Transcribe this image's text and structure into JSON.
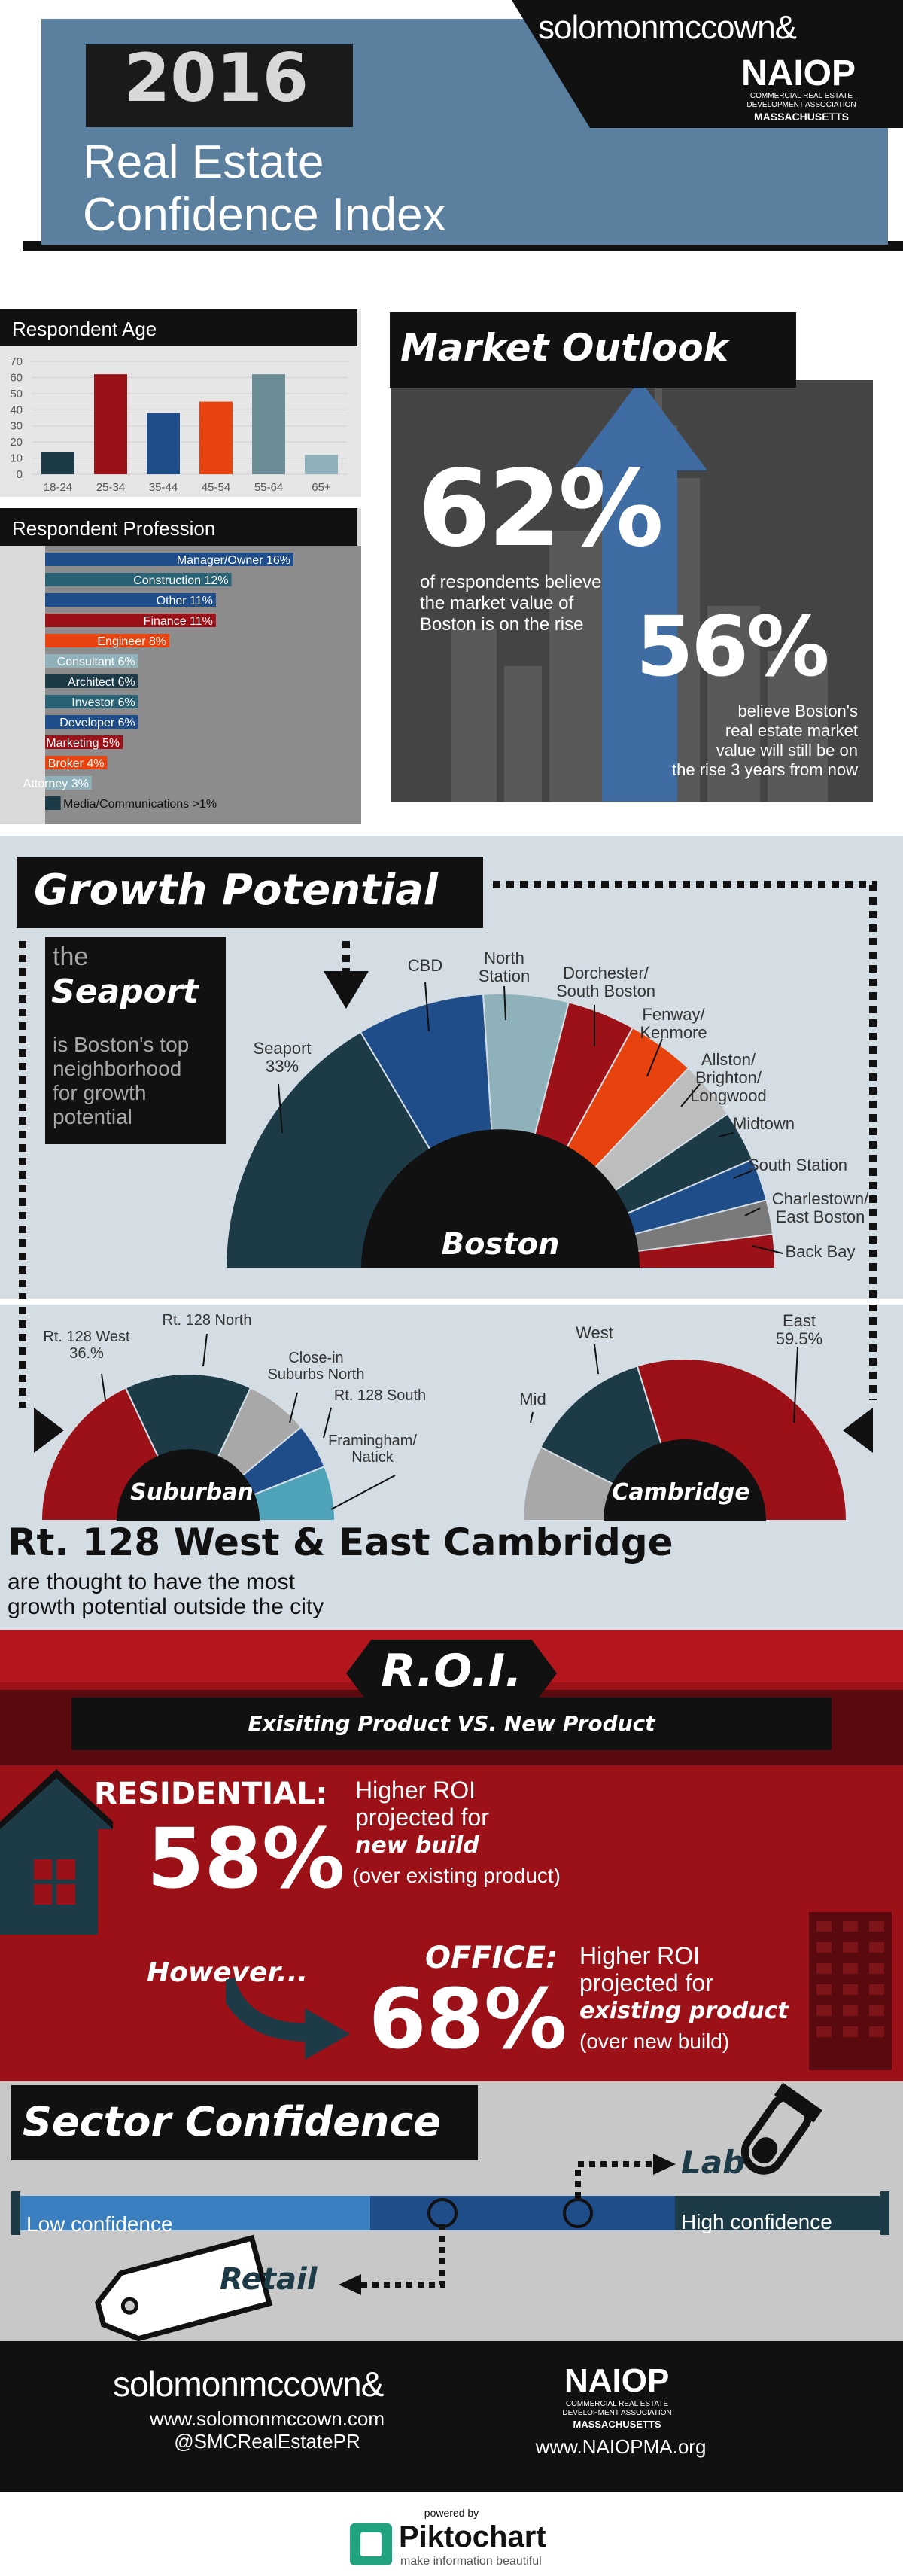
{
  "header": {
    "year": "2016",
    "title_line1": "Real Estate",
    "title_line2": "Confidence Index",
    "brand": "solomonmccown&",
    "naiop": "NAIOP",
    "naiop_sub1": "COMMERCIAL REAL ESTATE",
    "naiop_sub2": "DEVELOPMENT ASSOCIATION",
    "naiop_sub3": "MASSACHUSETTS"
  },
  "colors": {
    "dark_red": "#9b1117",
    "red": "#c51f24",
    "orange": "#e8430f",
    "blue": "#1f4d8a",
    "teal": "#1c3b47",
    "light_teal": "#8fb1ba",
    "gray": "#a8a8a8",
    "steel": "#4f7f9c",
    "black": "#111111"
  },
  "chart_data": [
    {
      "type": "bar",
      "title": "Respondent Age",
      "categories": [
        "18-24",
        "25-34",
        "35-44",
        "45-54",
        "55-64",
        "65+"
      ],
      "values": [
        14,
        62,
        38,
        45,
        62,
        12
      ],
      "colors": [
        "#1c3b47",
        "#9b1117",
        "#1f4d8a",
        "#e8430f",
        "#6d8d96",
        "#8fb1ba"
      ],
      "yticks": [
        "70",
        "60",
        "50",
        "40",
        "30",
        "20",
        "10",
        "0"
      ],
      "ylim": [
        0,
        70
      ]
    },
    {
      "type": "bar",
      "orientation": "horizontal",
      "title": "Respondent Profession",
      "labels": [
        "Manager/Owner 16%",
        "Construction 12%",
        "Other 11%",
        "Finance 11%",
        "Engineer 8%",
        "Consultant 6%",
        "Architect 6%",
        "Investor 6%",
        "Developer 6%",
        "Marketing 5%",
        "Broker 4%",
        "Attorney 3%",
        "Media/Communications >1%"
      ],
      "values": [
        16,
        12,
        11,
        11,
        8,
        6,
        6,
        6,
        6,
        5,
        4,
        3,
        1
      ],
      "colors": [
        "#1f4d8a",
        "#2a6275",
        "#1f4d8a",
        "#9b1117",
        "#e8430f",
        "#8fb1ba",
        "#1c3b47",
        "#2a6275",
        "#1f4d8a",
        "#9b1117",
        "#e8430f",
        "#8fb1ba",
        "#1c3b47"
      ]
    },
    {
      "type": "pie",
      "title": "Boston",
      "labels": [
        "Seaport 33%",
        "CBD",
        "North Station",
        "Dorchester/ South Boston",
        "Fenway/ Kenmore",
        "Allston/ Brighton/ Longwood",
        "Midtown",
        "South Station",
        "Charlestown/ East Boston",
        "Back Bay"
      ],
      "values": [
        33,
        15,
        10,
        8,
        8,
        7,
        6,
        5,
        4,
        4
      ],
      "colors": [
        "#1c3b47",
        "#1f4d8a",
        "#8fb1ba",
        "#9b1117",
        "#e8430f",
        "#bdbdbd",
        "#1c3b47",
        "#1f4d8a",
        "#7a7a7a",
        "#9b1117"
      ]
    },
    {
      "type": "pie",
      "title": "Suburban",
      "labels": [
        "Rt. 128 West 36.%",
        "Rt. 128 North",
        "Close-in Suburbs North",
        "Rt. 128 South",
        "Framingham/ Natick"
      ],
      "values": [
        36,
        28,
        14,
        10,
        12
      ],
      "colors": [
        "#9b1117",
        "#1c3b47",
        "#a8a8a8",
        "#1f4d8a",
        "#4fa3b8"
      ]
    },
    {
      "type": "pie",
      "title": "Cambridge",
      "labels": [
        "Mid",
        "West",
        "East 59.5%"
      ],
      "values": [
        15,
        25.5,
        59.5
      ],
      "colors": [
        "#a8a8a8",
        "#1c3b47",
        "#9b1117"
      ]
    }
  ],
  "market": {
    "heading": "Market Outlook",
    "stat1": "62%",
    "text1": "of respondents believe the market value of Boston is on the rise",
    "stat2": "56%",
    "text2_l1": "believe Boston's",
    "text2_l2": "real estate market",
    "text2_l3": "value will still be on",
    "text2_l4": "the rise 3 years from now"
  },
  "growth": {
    "heading": "Growth Potential",
    "side_the": "the",
    "side_seaport": "Seaport",
    "side_l1": "is Boston's top",
    "side_l2": "neighborhood",
    "side_l3": "for growth",
    "side_l4": "potential",
    "headline": "Rt. 128 West & East Cambridge",
    "sub_l1": "are thought to have the most",
    "sub_l2": "growth potential outside the city"
  },
  "roi": {
    "heading": "R.O.I.",
    "subheading": "Exisiting Product VS. New Product",
    "res_label": "RESIDENTIAL:",
    "res_pct": "58%",
    "res_l1": "Higher ROI",
    "res_l2": "projected for",
    "res_l3": "new build",
    "res_l4": "(over existing product)",
    "however": "However...",
    "off_label": "OFFICE:",
    "off_pct": "68%",
    "off_l1": "Higher ROI",
    "off_l2": "projected for",
    "off_l3": "existing product",
    "off_l4": "(over new build)"
  },
  "sector": {
    "heading": "Sector Confidence",
    "low": "Low confidence",
    "high": "High confidence",
    "lab": "Lab",
    "retail": "Retail",
    "lab_level": 0.67,
    "retail_level": 0.5
  },
  "footer": {
    "brand": "solomonmccown&",
    "url1": "www.solomonmccown.com",
    "twitter": "@SMCRealEstatePR",
    "naiop": "NAIOP",
    "naiop_sub1": "COMMERCIAL REAL ESTATE",
    "naiop_sub2": "DEVELOPMENT ASSOCIATION",
    "naiop_sub3": "MASSACHUSETTS",
    "url2": "www.NAIOPMA.org",
    "powered": "powered by",
    "pikto": "Piktochart",
    "pikto_tag": "make information beautiful"
  }
}
